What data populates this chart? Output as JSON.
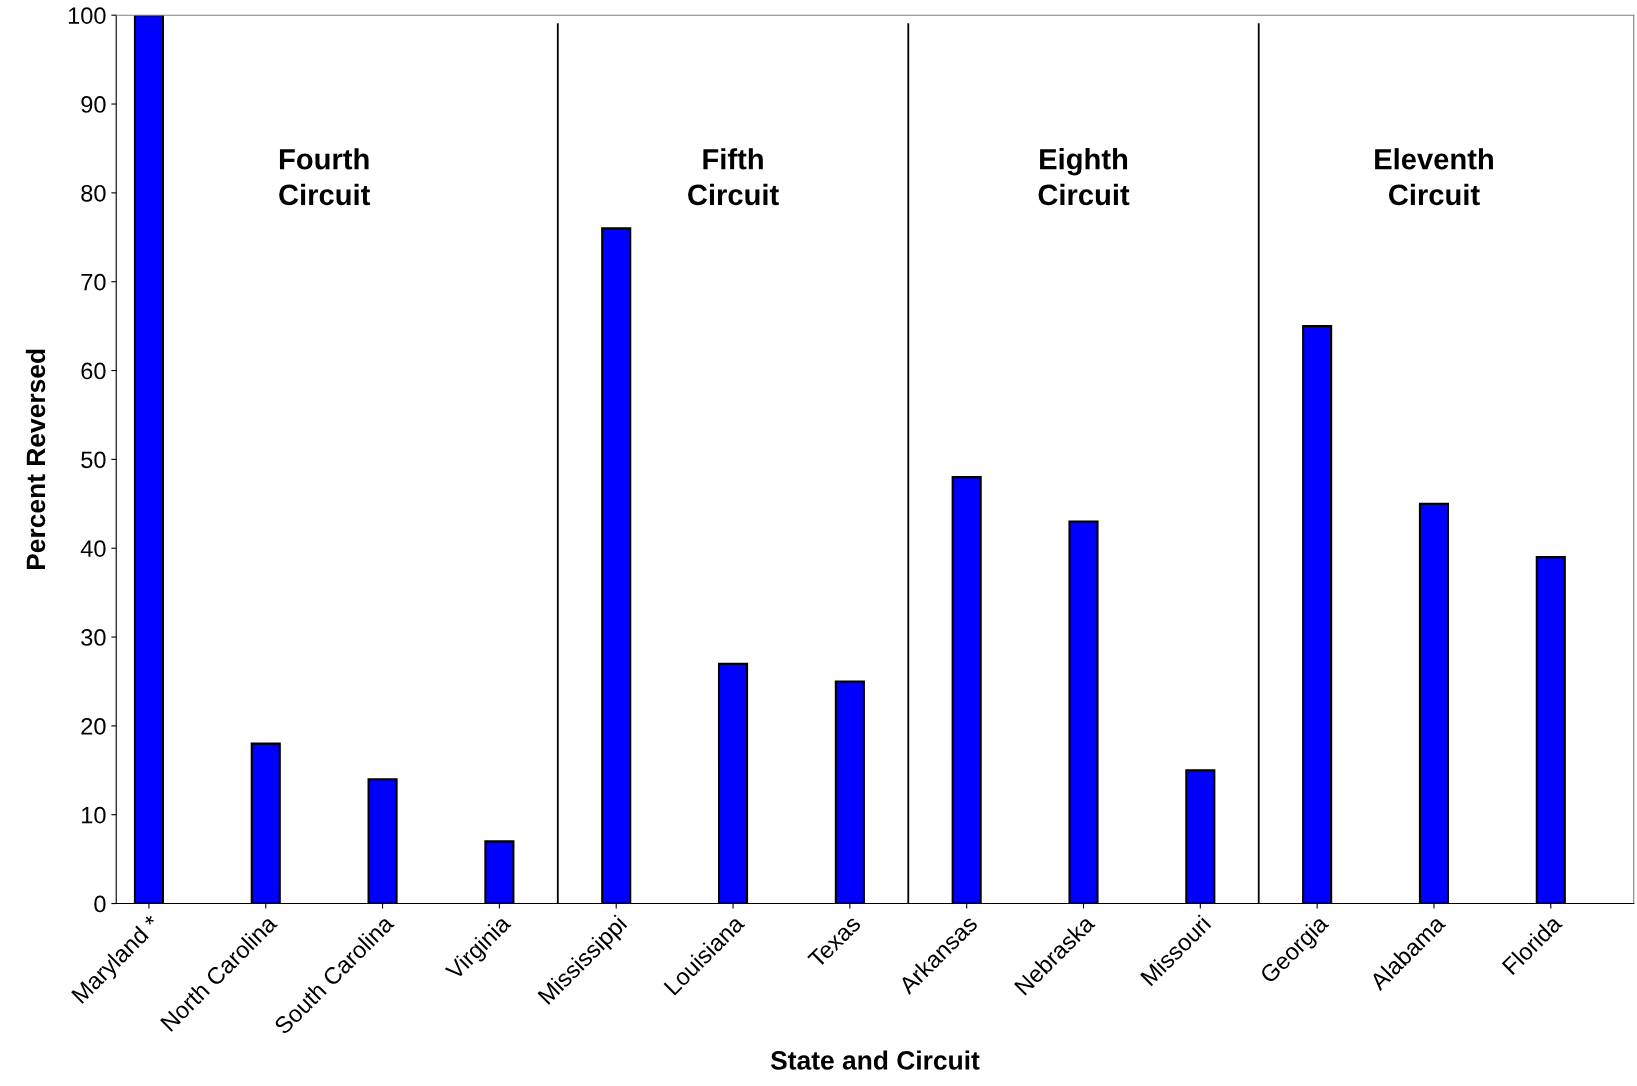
{
  "chart_data": {
    "type": "bar",
    "xlabel": "State and Circuit",
    "ylabel": "Percent Reversed",
    "categories": [
      "Maryland *",
      "North Carolina",
      "South Carolina",
      "Virginia",
      "Mississippi",
      "Louisiana",
      "Texas",
      "Arkansas",
      "Nebraska",
      "Missouri",
      "Georgia",
      "Alabama",
      "Florida"
    ],
    "values": [
      100,
      18,
      14,
      7,
      76,
      27,
      25,
      48,
      43,
      15,
      65,
      45,
      39
    ],
    "color": "#0000ff",
    "ylim": [
      0,
      100
    ],
    "yticks": [
      0,
      10,
      20,
      30,
      40,
      50,
      60,
      70,
      80,
      90,
      100
    ],
    "grid": false,
    "legend": false,
    "annotations": [
      "Fourth\nCircuit",
      "Fifth\nCircuit",
      "Eighth\nCircuit",
      "Eleventh\nCircuit"
    ]
  }
}
